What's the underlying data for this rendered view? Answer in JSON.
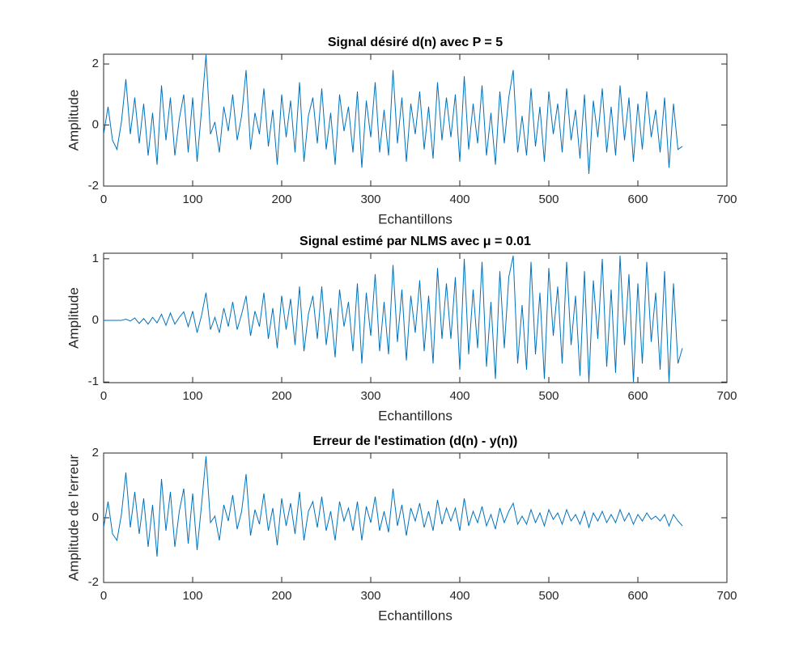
{
  "chart_data": [
    {
      "type": "line",
      "title": "Signal désiré d(n) avec P = 5",
      "xlabel": "Echantillons",
      "ylabel": "Amplitude",
      "color": "#0072bd",
      "xlim": [
        0,
        700
      ],
      "xticks": [
        0,
        100,
        200,
        300,
        400,
        500,
        600,
        700
      ],
      "ylim": [
        -2,
        2.32
      ],
      "yticks": [
        -2,
        0,
        2
      ],
      "x": [
        0,
        5,
        10,
        15,
        20,
        25,
        30,
        35,
        40,
        45,
        50,
        55,
        60,
        65,
        70,
        75,
        80,
        85,
        90,
        95,
        100,
        105,
        110,
        115,
        120,
        125,
        130,
        135,
        140,
        145,
        150,
        155,
        160,
        165,
        170,
        175,
        180,
        185,
        190,
        195,
        200,
        205,
        210,
        215,
        220,
        225,
        230,
        235,
        240,
        245,
        250,
        255,
        260,
        265,
        270,
        275,
        280,
        285,
        290,
        295,
        300,
        305,
        310,
        315,
        320,
        325,
        330,
        335,
        340,
        345,
        350,
        355,
        360,
        365,
        370,
        375,
        380,
        385,
        390,
        395,
        400,
        405,
        410,
        415,
        420,
        425,
        430,
        435,
        440,
        445,
        450,
        455,
        460,
        465,
        470,
        475,
        480,
        485,
        490,
        495,
        500,
        505,
        510,
        515,
        520,
        525,
        530,
        535,
        540,
        545,
        550,
        555,
        560,
        565,
        570,
        575,
        580,
        585,
        590,
        595,
        600,
        605,
        610,
        615,
        620,
        625,
        630,
        635,
        640,
        645,
        650
      ],
      "values": [
        -0.3,
        0.6,
        -0.5,
        -0.8,
        0.1,
        1.5,
        -0.3,
        0.9,
        -0.6,
        0.7,
        -1.0,
        0.4,
        -1.3,
        1.3,
        -0.5,
        0.9,
        -1.0,
        0.2,
        1.0,
        -0.9,
        0.9,
        -1.2,
        0.5,
        2.3,
        -0.3,
        0.1,
        -0.9,
        0.6,
        -0.2,
        1.0,
        -0.5,
        0.3,
        1.8,
        -0.8,
        0.4,
        -0.3,
        1.2,
        -0.7,
        0.5,
        -1.3,
        1.0,
        -0.4,
        0.8,
        -0.9,
        1.4,
        -1.2,
        0.3,
        0.9,
        -0.6,
        1.2,
        -0.8,
        0.4,
        -1.3,
        1.0,
        -0.2,
        0.6,
        -0.9,
        1.1,
        -1.4,
        0.8,
        -0.4,
        1.4,
        -0.9,
        0.5,
        -1.0,
        1.8,
        -0.6,
        0.9,
        -1.2,
        0.7,
        -0.3,
        1.1,
        -0.8,
        0.6,
        -1.1,
        1.4,
        -0.5,
        0.9,
        -0.4,
        1.0,
        -1.2,
        1.6,
        -0.8,
        0.7,
        -0.6,
        1.3,
        -1.0,
        0.4,
        -1.3,
        1.1,
        -0.6,
        0.9,
        1.8,
        -0.9,
        0.3,
        -1.0,
        1.2,
        -0.7,
        0.6,
        -1.2,
        1.1,
        -0.3,
        0.7,
        -0.9,
        1.2,
        -0.5,
        0.5,
        -1.1,
        1.0,
        -1.6,
        0.8,
        -0.4,
        1.2,
        -0.9,
        0.6,
        -1.0,
        1.3,
        -0.5,
        0.9,
        -1.2,
        0.7,
        -0.8,
        1.1,
        -0.4,
        0.5,
        -0.9,
        0.9,
        -1.4,
        0.7,
        -0.8,
        -0.7
      ]
    },
    {
      "type": "line",
      "title": "Signal estimé par NLMS avec μ = 0.01",
      "xlabel": "Echantillons",
      "ylabel": "Amplitude",
      "color": "#0072bd",
      "xlim": [
        0,
        700
      ],
      "xticks": [
        0,
        100,
        200,
        300,
        400,
        500,
        600,
        700
      ],
      "ylim": [
        -1.01,
        1.09
      ],
      "yticks": [
        -1,
        0,
        1
      ],
      "x": [
        0,
        5,
        10,
        15,
        20,
        25,
        30,
        35,
        40,
        45,
        50,
        55,
        60,
        65,
        70,
        75,
        80,
        85,
        90,
        95,
        100,
        105,
        110,
        115,
        120,
        125,
        130,
        135,
        140,
        145,
        150,
        155,
        160,
        165,
        170,
        175,
        180,
        185,
        190,
        195,
        200,
        205,
        210,
        215,
        220,
        225,
        230,
        235,
        240,
        245,
        250,
        255,
        260,
        265,
        270,
        275,
        280,
        285,
        290,
        295,
        300,
        305,
        310,
        315,
        320,
        325,
        330,
        335,
        340,
        345,
        350,
        355,
        360,
        365,
        370,
        375,
        380,
        385,
        390,
        395,
        400,
        405,
        410,
        415,
        420,
        425,
        430,
        435,
        440,
        445,
        450,
        455,
        460,
        465,
        470,
        475,
        480,
        485,
        490,
        495,
        500,
        505,
        510,
        515,
        520,
        525,
        530,
        535,
        540,
        545,
        550,
        555,
        560,
        565,
        570,
        575,
        580,
        585,
        590,
        595,
        600,
        605,
        610,
        615,
        620,
        625,
        630,
        635,
        640,
        645,
        650
      ],
      "values": [
        0,
        0,
        0,
        0,
        0,
        0.02,
        -0.01,
        0.04,
        -0.05,
        0.03,
        -0.06,
        0.05,
        -0.04,
        0.1,
        -0.08,
        0.12,
        -0.06,
        0.05,
        0.14,
        -0.1,
        0.15,
        -0.2,
        0.08,
        0.45,
        -0.15,
        0.05,
        -0.2,
        0.2,
        -0.1,
        0.3,
        -0.15,
        0.1,
        0.4,
        -0.25,
        0.15,
        -0.1,
        0.45,
        -0.3,
        0.2,
        -0.45,
        0.4,
        -0.15,
        0.35,
        -0.4,
        0.55,
        -0.5,
        0.1,
        0.4,
        -0.3,
        0.55,
        -0.4,
        0.2,
        -0.6,
        0.5,
        -0.1,
        0.3,
        -0.5,
        0.6,
        -0.7,
        0.45,
        -0.25,
        0.75,
        -0.5,
        0.3,
        -0.55,
        0.9,
        -0.35,
        0.5,
        -0.65,
        0.4,
        -0.2,
        0.65,
        -0.5,
        0.4,
        -0.7,
        0.85,
        -0.3,
        0.6,
        -0.3,
        0.7,
        -0.8,
        1.0,
        -0.55,
        0.5,
        -0.45,
        0.95,
        -0.75,
        0.3,
        -0.95,
        0.8,
        -0.45,
        0.7,
        1.05,
        -0.7,
        0.25,
        -0.8,
        0.95,
        -0.55,
        0.45,
        -0.95,
        0.85,
        -0.25,
        0.55,
        -0.7,
        0.95,
        -0.4,
        0.4,
        -0.9,
        0.8,
        -1.0,
        0.65,
        -0.3,
        1.0,
        -0.75,
        0.5,
        -0.85,
        1.05,
        -0.4,
        0.75,
        -1.0,
        0.6,
        -0.7,
        0.95,
        -0.35,
        0.45,
        -0.8,
        0.8,
        -1.0,
        0.6,
        -0.7,
        -0.45
      ]
    },
    {
      "type": "line",
      "title": "Erreur de l'estimation (d(n) - y(n))",
      "xlabel": "Echantillons",
      "ylabel": "Amplitude de l'erreur",
      "color": "#0072bd",
      "xlim": [
        0,
        700
      ],
      "xticks": [
        0,
        100,
        200,
        300,
        400,
        500,
        600,
        700
      ],
      "ylim": [
        -2,
        2
      ],
      "yticks": [
        -2,
        0,
        2
      ],
      "x": [
        0,
        5,
        10,
        15,
        20,
        25,
        30,
        35,
        40,
        45,
        50,
        55,
        60,
        65,
        70,
        75,
        80,
        85,
        90,
        95,
        100,
        105,
        110,
        115,
        120,
        125,
        130,
        135,
        140,
        145,
        150,
        155,
        160,
        165,
        170,
        175,
        180,
        185,
        190,
        195,
        200,
        205,
        210,
        215,
        220,
        225,
        230,
        235,
        240,
        245,
        250,
        255,
        260,
        265,
        270,
        275,
        280,
        285,
        290,
        295,
        300,
        305,
        310,
        315,
        320,
        325,
        330,
        335,
        340,
        345,
        350,
        355,
        360,
        365,
        370,
        375,
        380,
        385,
        390,
        395,
        400,
        405,
        410,
        415,
        420,
        425,
        430,
        435,
        440,
        445,
        450,
        455,
        460,
        465,
        470,
        475,
        480,
        485,
        490,
        495,
        500,
        505,
        510,
        515,
        520,
        525,
        530,
        535,
        540,
        545,
        550,
        555,
        560,
        565,
        570,
        575,
        580,
        585,
        590,
        595,
        600,
        605,
        610,
        615,
        620,
        625,
        630,
        635,
        640,
        645,
        650
      ],
      "values": [
        -0.3,
        0.5,
        -0.5,
        -0.7,
        0.1,
        1.4,
        -0.3,
        0.8,
        -0.5,
        0.6,
        -0.9,
        0.4,
        -1.2,
        1.2,
        -0.4,
        0.8,
        -0.9,
        0.2,
        0.9,
        -0.8,
        0.75,
        -1.0,
        0.4,
        1.9,
        -0.15,
        0.05,
        -0.7,
        0.4,
        -0.1,
        0.7,
        -0.35,
        0.2,
        1.35,
        -0.55,
        0.25,
        -0.2,
        0.75,
        -0.4,
        0.3,
        -0.85,
        0.6,
        -0.25,
        0.45,
        -0.5,
        0.8,
        -0.7,
        0.2,
        0.5,
        -0.3,
        0.65,
        -0.4,
        0.2,
        -0.7,
        0.5,
        -0.1,
        0.3,
        -0.4,
        0.5,
        -0.7,
        0.35,
        -0.15,
        0.65,
        -0.4,
        0.2,
        -0.45,
        0.9,
        -0.25,
        0.4,
        -0.55,
        0.3,
        -0.1,
        0.45,
        -0.3,
        0.2,
        -0.4,
        0.55,
        -0.2,
        0.3,
        -0.1,
        0.3,
        -0.4,
        0.6,
        -0.25,
        0.2,
        -0.15,
        0.35,
        -0.25,
        0.1,
        -0.35,
        0.3,
        -0.15,
        0.2,
        0.45,
        -0.2,
        0.05,
        -0.2,
        0.25,
        -0.15,
        0.15,
        -0.25,
        0.25,
        -0.05,
        0.15,
        -0.2,
        0.25,
        -0.1,
        0.1,
        -0.2,
        0.2,
        -0.3,
        0.15,
        -0.1,
        0.2,
        -0.15,
        0.1,
        -0.15,
        0.25,
        -0.1,
        0.15,
        -0.2,
        0.1,
        -0.1,
        0.15,
        -0.05,
        0.05,
        -0.1,
        0.1,
        -0.25,
        0.1,
        -0.1,
        -0.25
      ]
    }
  ]
}
